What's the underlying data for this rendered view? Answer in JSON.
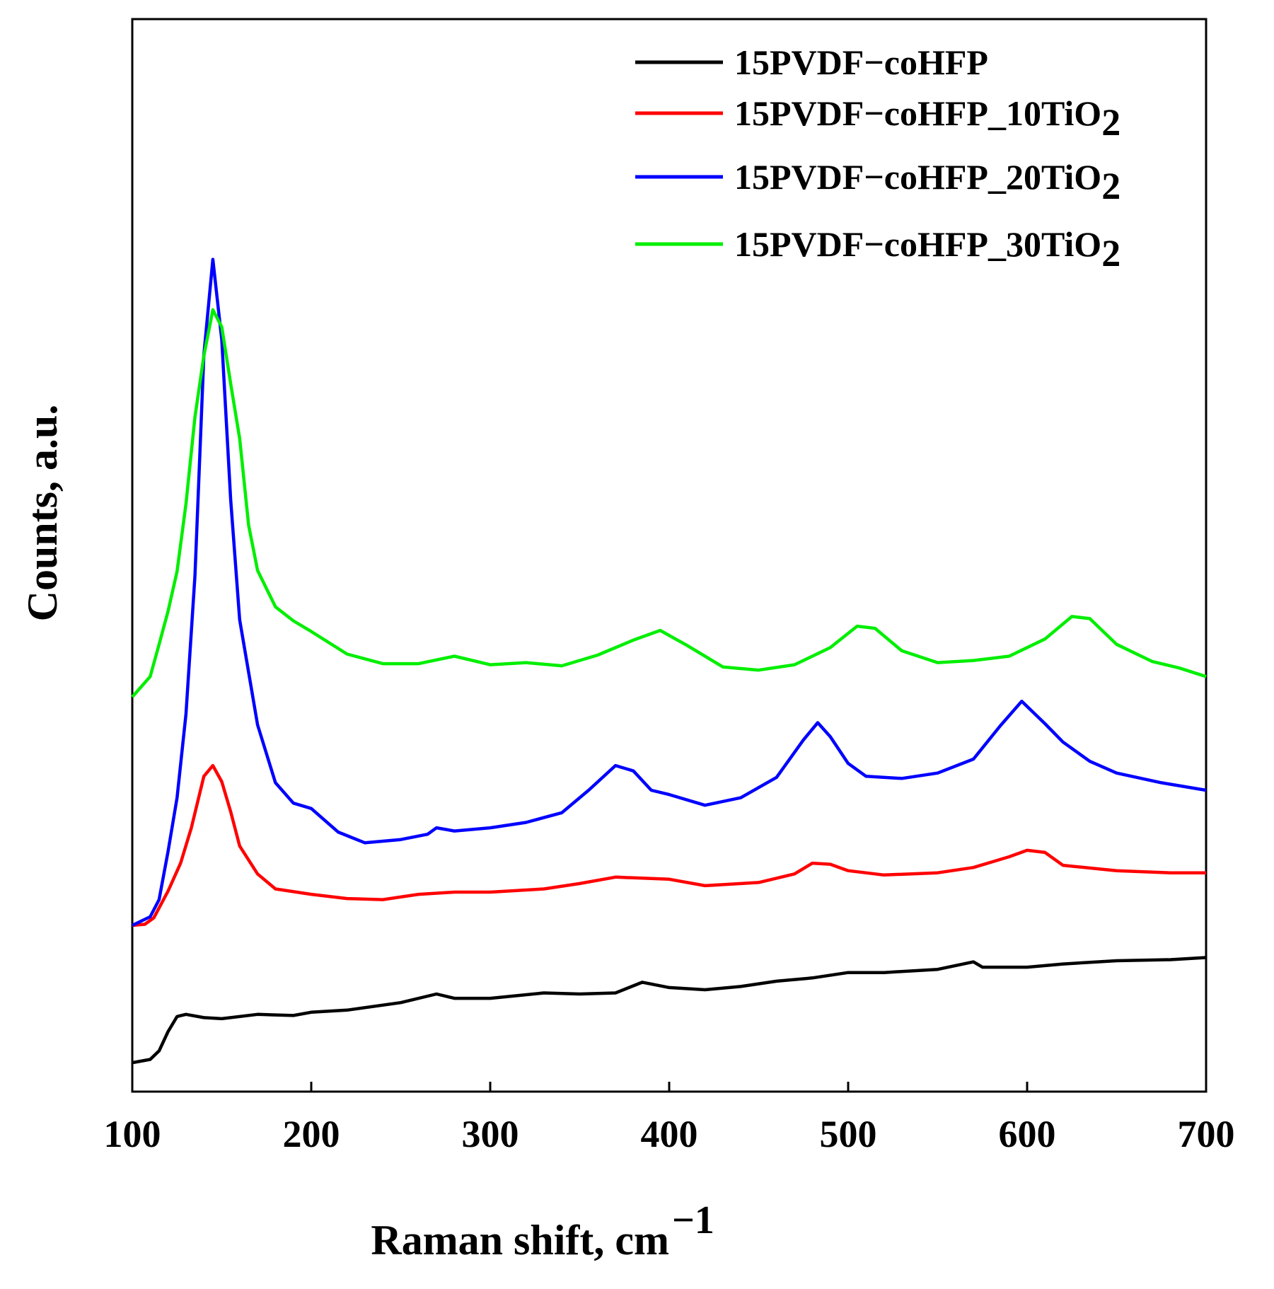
{
  "chart_data": {
    "type": "line",
    "title": "",
    "xlabel": "Raman shift, cm",
    "xlabel_superscript": "−1",
    "ylabel": "Counts, a.u.",
    "xlim": [
      100,
      700
    ],
    "ylim": [
      0,
      100
    ],
    "x_ticks": [
      "100",
      "200",
      "300",
      "400",
      "500",
      "600",
      "700"
    ],
    "y_ticks": [],
    "grid": false,
    "legend_position": "top-right",
    "series": [
      {
        "name": "15PVDF−coHFP",
        "label_main": "15PVDF−coHFP",
        "label_sub": "",
        "color": "#000000",
        "points": [
          [
            100,
            2.7
          ],
          [
            110,
            3.0
          ],
          [
            115,
            3.8
          ],
          [
            120,
            5.6
          ],
          [
            125,
            7.0
          ],
          [
            130,
            7.2
          ],
          [
            140,
            6.9
          ],
          [
            150,
            6.8
          ],
          [
            170,
            7.2
          ],
          [
            190,
            7.1
          ],
          [
            200,
            7.4
          ],
          [
            220,
            7.6
          ],
          [
            250,
            8.3
          ],
          [
            270,
            9.1
          ],
          [
            280,
            8.7
          ],
          [
            300,
            8.7
          ],
          [
            330,
            9.2
          ],
          [
            350,
            9.1
          ],
          [
            370,
            9.2
          ],
          [
            385,
            10.2
          ],
          [
            400,
            9.7
          ],
          [
            420,
            9.5
          ],
          [
            440,
            9.8
          ],
          [
            460,
            10.3
          ],
          [
            480,
            10.6
          ],
          [
            500,
            11.1
          ],
          [
            520,
            11.1
          ],
          [
            550,
            11.4
          ],
          [
            570,
            12.1
          ],
          [
            575,
            11.6
          ],
          [
            600,
            11.6
          ],
          [
            620,
            11.9
          ],
          [
            650,
            12.2
          ],
          [
            680,
            12.3
          ],
          [
            700,
            12.5
          ]
        ]
      },
      {
        "name": "15PVDF−coHFP_10TiO2",
        "label_main": "15PVDF−coHFP_10TiO",
        "label_sub": "2",
        "color": "#ff0000",
        "points": [
          [
            100,
            15.5
          ],
          [
            107,
            15.6
          ],
          [
            112,
            16.2
          ],
          [
            120,
            18.7
          ],
          [
            127,
            21.3
          ],
          [
            133,
            24.6
          ],
          [
            140,
            29.4
          ],
          [
            145,
            30.4
          ],
          [
            150,
            28.9
          ],
          [
            155,
            26.1
          ],
          [
            160,
            22.9
          ],
          [
            170,
            20.3
          ],
          [
            180,
            18.9
          ],
          [
            200,
            18.4
          ],
          [
            220,
            18.0
          ],
          [
            240,
            17.9
          ],
          [
            260,
            18.4
          ],
          [
            280,
            18.6
          ],
          [
            300,
            18.6
          ],
          [
            330,
            18.9
          ],
          [
            350,
            19.4
          ],
          [
            370,
            20.0
          ],
          [
            400,
            19.8
          ],
          [
            420,
            19.2
          ],
          [
            450,
            19.5
          ],
          [
            470,
            20.3
          ],
          [
            480,
            21.3
          ],
          [
            490,
            21.2
          ],
          [
            500,
            20.6
          ],
          [
            520,
            20.2
          ],
          [
            550,
            20.4
          ],
          [
            570,
            20.9
          ],
          [
            590,
            21.9
          ],
          [
            600,
            22.5
          ],
          [
            610,
            22.3
          ],
          [
            620,
            21.1
          ],
          [
            650,
            20.6
          ],
          [
            680,
            20.4
          ],
          [
            700,
            20.4
          ]
        ]
      },
      {
        "name": "15PVDF−coHFP_20TiO2",
        "label_main": "15PVDF−coHFP_20TiO",
        "label_sub": "2",
        "color": "#0000ff",
        "points": [
          [
            100,
            15.5
          ],
          [
            110,
            16.3
          ],
          [
            115,
            17.9
          ],
          [
            120,
            22.4
          ],
          [
            125,
            27.4
          ],
          [
            130,
            35.2
          ],
          [
            135,
            48.1
          ],
          [
            140,
            68.7
          ],
          [
            145,
            77.6
          ],
          [
            150,
            70.1
          ],
          [
            155,
            55.2
          ],
          [
            160,
            44.0
          ],
          [
            170,
            34.2
          ],
          [
            180,
            28.8
          ],
          [
            190,
            26.9
          ],
          [
            200,
            26.4
          ],
          [
            215,
            24.2
          ],
          [
            230,
            23.2
          ],
          [
            250,
            23.5
          ],
          [
            265,
            24.0
          ],
          [
            270,
            24.6
          ],
          [
            280,
            24.3
          ],
          [
            300,
            24.6
          ],
          [
            320,
            25.1
          ],
          [
            340,
            26.0
          ],
          [
            355,
            28.1
          ],
          [
            370,
            30.4
          ],
          [
            380,
            29.9
          ],
          [
            390,
            28.1
          ],
          [
            400,
            27.7
          ],
          [
            420,
            26.7
          ],
          [
            440,
            27.4
          ],
          [
            460,
            29.3
          ],
          [
            475,
            32.8
          ],
          [
            483,
            34.4
          ],
          [
            490,
            33.1
          ],
          [
            500,
            30.6
          ],
          [
            510,
            29.4
          ],
          [
            530,
            29.2
          ],
          [
            550,
            29.7
          ],
          [
            570,
            31.0
          ],
          [
            585,
            34.1
          ],
          [
            597,
            36.4
          ],
          [
            610,
            34.3
          ],
          [
            620,
            32.6
          ],
          [
            635,
            30.8
          ],
          [
            650,
            29.7
          ],
          [
            675,
            28.8
          ],
          [
            700,
            28.1
          ]
        ]
      },
      {
        "name": "15PVDF−coHFP_30TiO2",
        "label_main": "15PVDF−coHFP_30TiO",
        "label_sub": "2",
        "color": "#00ee00",
        "points": [
          [
            100,
            36.8
          ],
          [
            110,
            38.7
          ],
          [
            115,
            41.7
          ],
          [
            120,
            44.8
          ],
          [
            125,
            48.5
          ],
          [
            130,
            54.8
          ],
          [
            135,
            62.9
          ],
          [
            140,
            68.6
          ],
          [
            145,
            72.9
          ],
          [
            150,
            71.3
          ],
          [
            155,
            66.0
          ],
          [
            160,
            60.9
          ],
          [
            165,
            52.8
          ],
          [
            170,
            48.6
          ],
          [
            180,
            45.2
          ],
          [
            190,
            43.9
          ],
          [
            200,
            42.9
          ],
          [
            220,
            40.8
          ],
          [
            240,
            39.9
          ],
          [
            260,
            39.9
          ],
          [
            280,
            40.6
          ],
          [
            300,
            39.8
          ],
          [
            320,
            40.0
          ],
          [
            340,
            39.7
          ],
          [
            360,
            40.7
          ],
          [
            380,
            42.1
          ],
          [
            395,
            43.0
          ],
          [
            410,
            41.6
          ],
          [
            430,
            39.6
          ],
          [
            450,
            39.3
          ],
          [
            470,
            39.8
          ],
          [
            490,
            41.4
          ],
          [
            505,
            43.4
          ],
          [
            515,
            43.2
          ],
          [
            530,
            41.1
          ],
          [
            550,
            40.0
          ],
          [
            570,
            40.2
          ],
          [
            590,
            40.6
          ],
          [
            610,
            42.2
          ],
          [
            625,
            44.3
          ],
          [
            635,
            44.1
          ],
          [
            650,
            41.7
          ],
          [
            670,
            40.1
          ],
          [
            685,
            39.5
          ],
          [
            700,
            38.7
          ]
        ]
      }
    ]
  }
}
